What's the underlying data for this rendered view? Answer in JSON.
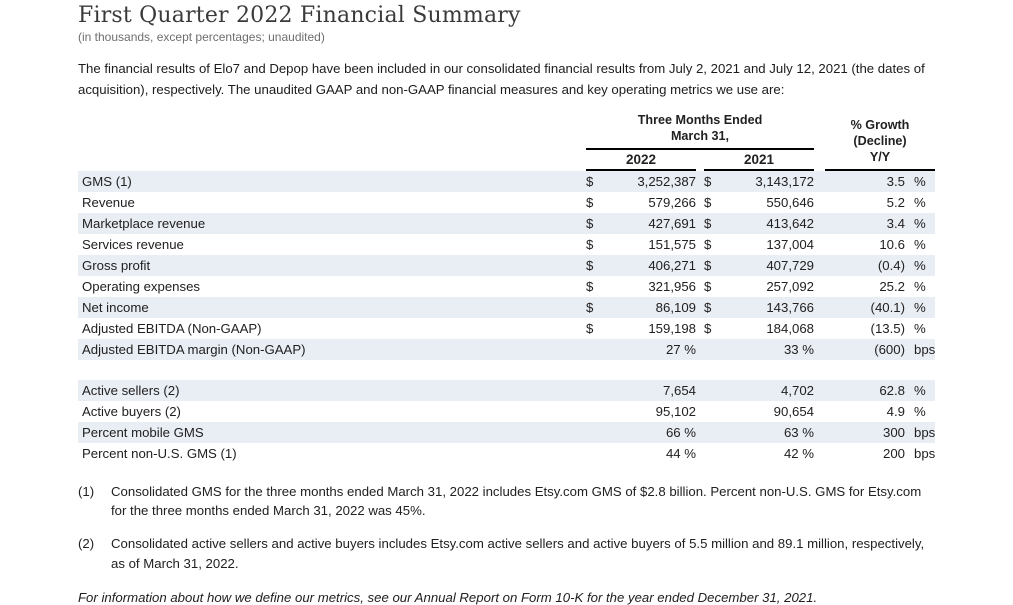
{
  "colors": {
    "row_shade": "#e9edf4",
    "rule": "#000000",
    "title_text": "#3a3a3a",
    "muted_text": "#6e6e6e"
  },
  "header": {
    "title": "First Quarter 2022 Financial Summary",
    "subtitle": "(in thousands, except percentages; unaudited)"
  },
  "intro": {
    "text": "The financial results of Elo7 and Depop have been included in our consolidated financial results from July 2, 2021 and July 12, 2021 (the dates of acquisition), respectively. The unaudited GAAP and non-GAAP financial measures and key operating metrics we use are:"
  },
  "table": {
    "period_header": "Three Months Ended\nMarch 31,",
    "growth_header": "% Growth\n(Decline)\nY/Y",
    "year_columns": [
      "2022",
      "2021"
    ],
    "currency_symbol": "$",
    "financial_rows": [
      {
        "label": "GMS (1)",
        "currency": true,
        "y2022": "3,252,387",
        "y2021": "3,143,172",
        "growth": "3.5",
        "growth_unit": "%"
      },
      {
        "label": "Revenue",
        "currency": true,
        "y2022": "579,266",
        "y2021": "550,646",
        "growth": "5.2",
        "growth_unit": "%"
      },
      {
        "label": "Marketplace revenue",
        "currency": true,
        "y2022": "427,691",
        "y2021": "413,642",
        "growth": "3.4",
        "growth_unit": "%"
      },
      {
        "label": "Services revenue",
        "currency": true,
        "y2022": "151,575",
        "y2021": "137,004",
        "growth": "10.6",
        "growth_unit": "%"
      },
      {
        "label": "Gross profit",
        "currency": true,
        "y2022": "406,271",
        "y2021": "407,729",
        "growth": "(0.4)",
        "growth_unit": "%"
      },
      {
        "label": "Operating expenses",
        "currency": true,
        "y2022": "321,956",
        "y2021": "257,092",
        "growth": "25.2",
        "growth_unit": "%"
      },
      {
        "label": "Net income",
        "currency": true,
        "y2022": "86,109",
        "y2021": "143,766",
        "growth": "(40.1)",
        "growth_unit": "%"
      },
      {
        "label": "Adjusted EBITDA (Non-GAAP)",
        "currency": true,
        "y2022": "159,198",
        "y2021": "184,068",
        "growth": "(13.5)",
        "growth_unit": "%"
      },
      {
        "label": "Adjusted EBITDA margin (Non-GAAP)",
        "currency": false,
        "y2022": "27 %",
        "y2021": "33 %",
        "growth": "(600)",
        "growth_unit": "bps"
      }
    ],
    "operating_rows": [
      {
        "label": "Active sellers (2)",
        "currency": false,
        "y2022": "7,654",
        "y2021": "4,702",
        "growth": "62.8",
        "growth_unit": "%"
      },
      {
        "label": "Active buyers (2)",
        "currency": false,
        "y2022": "95,102",
        "y2021": "90,654",
        "growth": "4.9",
        "growth_unit": "%"
      },
      {
        "label": "Percent mobile GMS",
        "currency": false,
        "y2022": "66 %",
        "y2021": "63 %",
        "growth": "300",
        "growth_unit": "bps"
      },
      {
        "label": "Percent non-U.S. GMS (1)",
        "currency": false,
        "y2022": "44 %",
        "y2021": "42 %",
        "growth": "200",
        "growth_unit": "bps"
      }
    ]
  },
  "footnotes": [
    {
      "marker": "(1)",
      "text": "Consolidated GMS for the three months ended March 31, 2022 includes Etsy.com GMS of $2.8 billion. Percent non-U.S. GMS for Etsy.com for the three months ended March 31, 2022 was 45%."
    },
    {
      "marker": "(2)",
      "text": "Consolidated active sellers and active buyers includes Etsy.com active sellers and active buyers of 5.5 million and 89.1 million, respectively, as of March 31, 2022."
    }
  ],
  "footer": {
    "note": "For information about how we define our metrics, see our Annual Report on Form 10-K for the year ended December 31, 2021."
  }
}
